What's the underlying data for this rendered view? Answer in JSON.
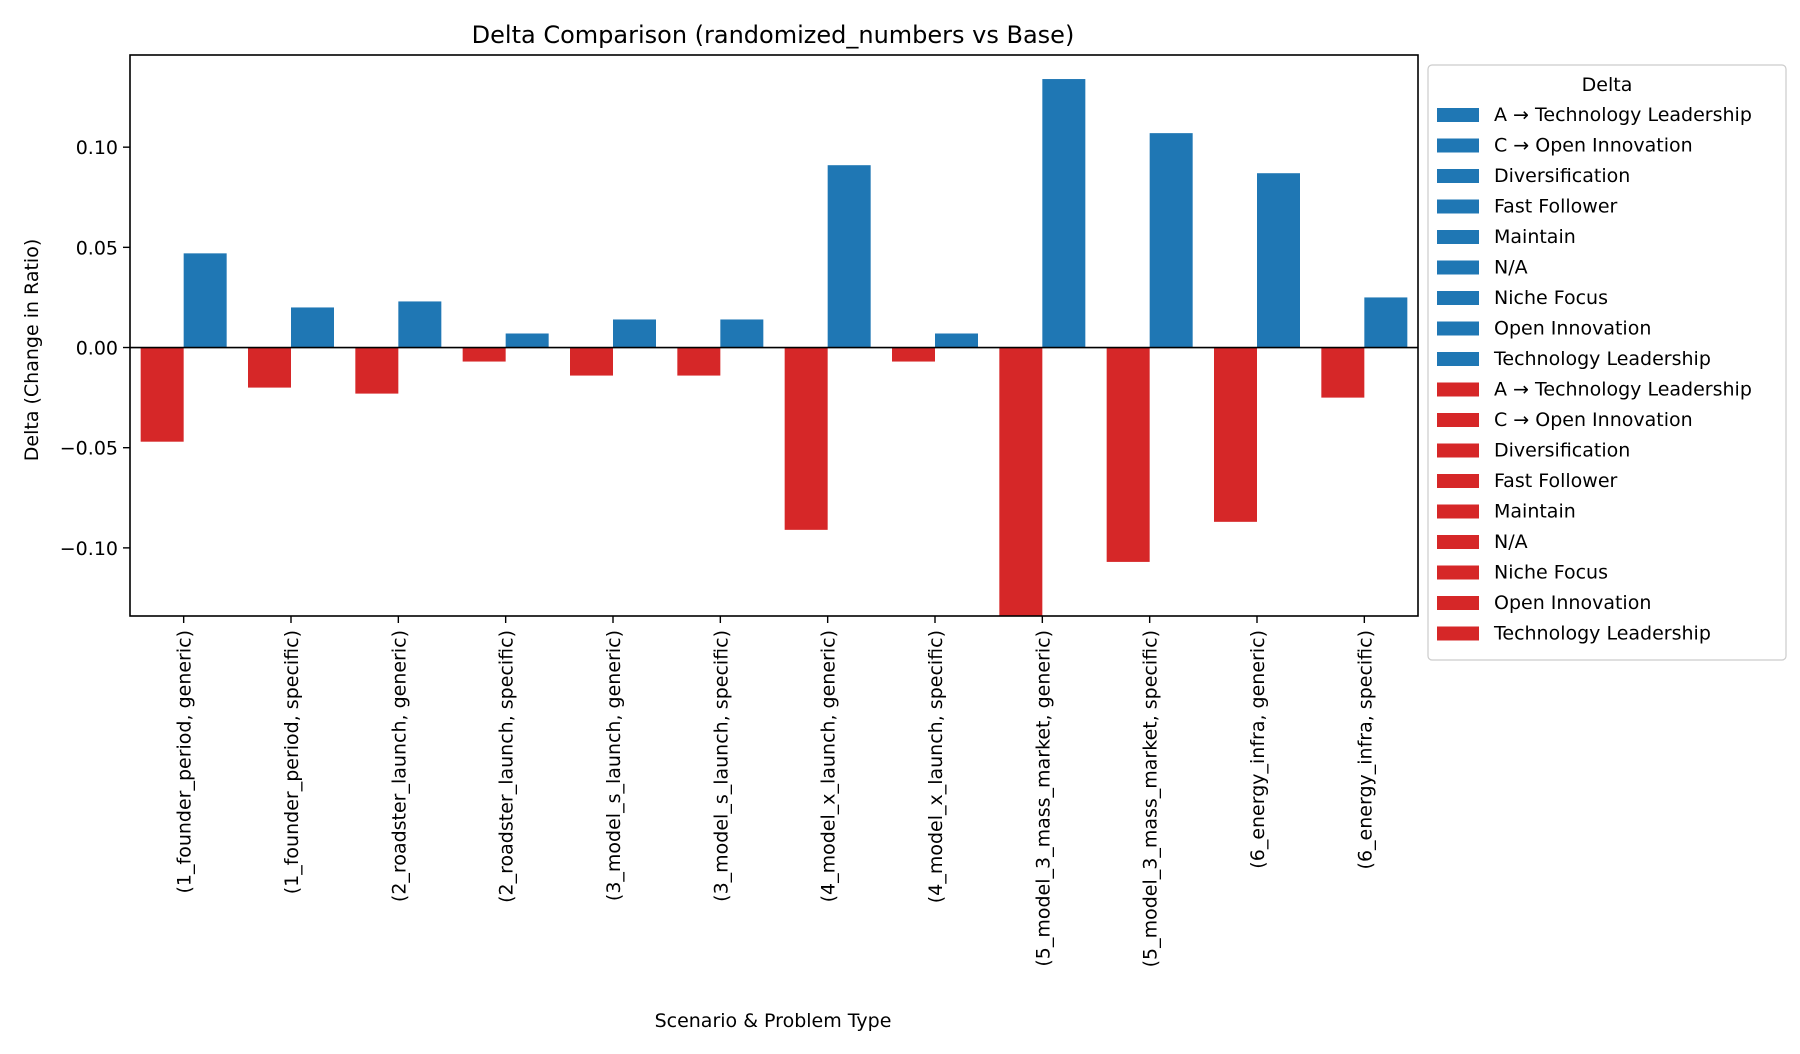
{
  "chart_data": {
    "type": "bar",
    "title": "Delta Comparison (randomized_numbers vs Base)",
    "xlabel": "Scenario & Problem Type",
    "ylabel": "Delta (Change in Ratio)",
    "ylim": [
      -0.134,
      0.146
    ],
    "yticks": [
      -0.1,
      -0.05,
      0.0,
      0.05,
      0.1
    ],
    "ytick_labels": [
      "−0.10",
      "−0.05",
      "0.00",
      "0.05",
      "0.10"
    ],
    "grid": false,
    "categories": [
      "(1_founder_period, generic)",
      "(1_founder_period, specific)",
      "(2_roadster_launch, generic)",
      "(2_roadster_launch, specific)",
      "(3_model_s_launch, generic)",
      "(3_model_s_launch, specific)",
      "(4_model_x_launch, generic)",
      "(4_model_x_launch, specific)",
      "(5_model_3_mass_market, generic)",
      "(5_model_3_mass_market, specific)",
      "(6_energy_infra, generic)",
      "(6_energy_infra, specific)"
    ],
    "series": [
      {
        "color": "#d62728",
        "values": [
          -0.047,
          -0.02,
          -0.023,
          -0.007,
          -0.014,
          -0.014,
          -0.091,
          -0.007,
          -0.134,
          -0.107,
          -0.087,
          -0.025
        ]
      },
      {
        "color": "#1f77b4",
        "values": [
          0.047,
          0.02,
          0.023,
          0.007,
          0.014,
          0.014,
          0.091,
          0.007,
          0.134,
          0.107,
          0.087,
          0.025
        ]
      }
    ],
    "legend": {
      "title": "Delta",
      "placement": "outside-right",
      "entries": [
        {
          "label": "A → Technology Leadership",
          "color": "#1f77b4"
        },
        {
          "label": "C → Open Innovation",
          "color": "#1f77b4"
        },
        {
          "label": "Diversification",
          "color": "#1f77b4"
        },
        {
          "label": "Fast Follower",
          "color": "#1f77b4"
        },
        {
          "label": "Maintain",
          "color": "#1f77b4"
        },
        {
          "label": "N/A",
          "color": "#1f77b4"
        },
        {
          "label": "Niche Focus",
          "color": "#1f77b4"
        },
        {
          "label": "Open Innovation",
          "color": "#1f77b4"
        },
        {
          "label": "Technology Leadership",
          "color": "#1f77b4"
        },
        {
          "label": "A → Technology Leadership",
          "color": "#d62728"
        },
        {
          "label": "C → Open Innovation",
          "color": "#d62728"
        },
        {
          "label": "Diversification",
          "color": "#d62728"
        },
        {
          "label": "Fast Follower",
          "color": "#d62728"
        },
        {
          "label": "Maintain",
          "color": "#d62728"
        },
        {
          "label": "N/A",
          "color": "#d62728"
        },
        {
          "label": "Niche Focus",
          "color": "#d62728"
        },
        {
          "label": "Open Innovation",
          "color": "#d62728"
        },
        {
          "label": "Technology Leadership",
          "color": "#d62728"
        }
      ]
    }
  }
}
